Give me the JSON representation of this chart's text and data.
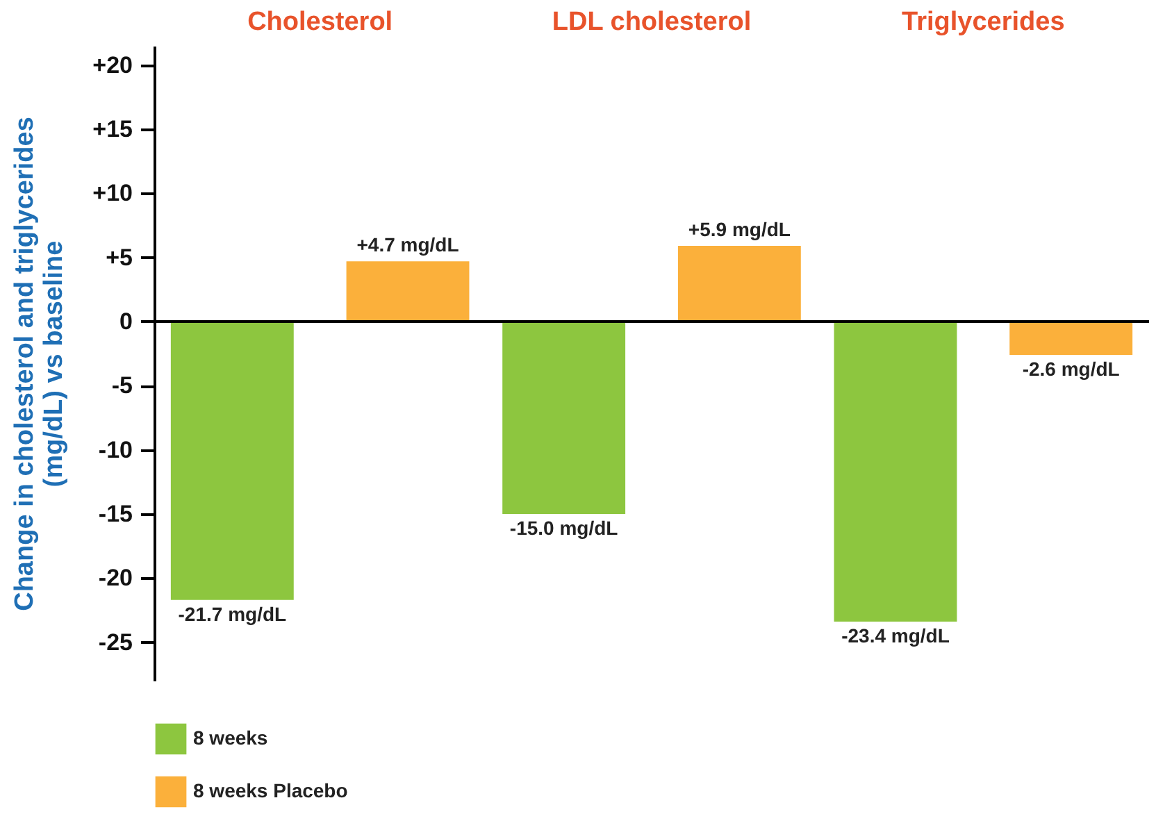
{
  "chart_data": {
    "type": "bar",
    "ylabel": "Change in cholesterol and triglycerides\n(mg/dL) vs baseline",
    "categories": [
      "Cholesterol",
      "LDL cholesterol",
      "Triglycerides"
    ],
    "series": [
      {
        "name": "8 weeks",
        "color": "#8dc63f",
        "values": [
          -21.7,
          -15.0,
          -23.4
        ],
        "value_labels": [
          "-21.7 mg/dL",
          "-15.0 mg/dL",
          "-23.4 mg/dL"
        ]
      },
      {
        "name": "8 weeks Placebo",
        "color": "#fbb03b",
        "values": [
          4.7,
          5.9,
          -2.6
        ],
        "value_labels": [
          "+4.7 mg/dL",
          "+5.9 mg/dL",
          "-2.6 mg/dL"
        ]
      }
    ],
    "ylim": [
      -28,
      21.5
    ],
    "yticks": [
      {
        "value": 20,
        "label": "+20"
      },
      {
        "value": 15,
        "label": "+15"
      },
      {
        "value": 10,
        "label": "+10"
      },
      {
        "value": 5,
        "label": "+5"
      },
      0,
      -5,
      -10,
      -15,
      -20,
      -25
    ],
    "ref_lines": [
      {
        "axis": "y",
        "value": 0,
        "color": "#000000"
      }
    ],
    "grid": false,
    "legend": "bottom"
  }
}
